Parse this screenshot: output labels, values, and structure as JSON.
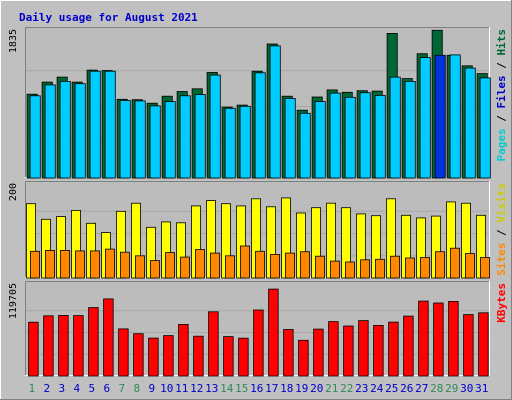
{
  "chart_data": {
    "type": "bar",
    "title": "Daily usage for August 2021",
    "colors": {
      "background": "#c0c0c0",
      "plot_background": "#bcbcbc",
      "title": "#0000cc",
      "hits": "#006633",
      "files": "#00ccff",
      "pages": "#00cccc",
      "visits": "#ffff00",
      "sites": "#ff8800",
      "kbytes": "#ff0000",
      "weekend_label": "#2e8b57",
      "weekday_label": "#0000cc"
    },
    "categories": [
      "1",
      "2",
      "3",
      "4",
      "5",
      "6",
      "7",
      "8",
      "9",
      "10",
      "11",
      "12",
      "13",
      "14",
      "15",
      "16",
      "17",
      "18",
      "19",
      "20",
      "21",
      "22",
      "23",
      "24",
      "25",
      "26",
      "27",
      "28",
      "29",
      "30",
      "31"
    ],
    "weekend_days": [
      "1",
      "7",
      "8",
      "14",
      "15",
      "21",
      "22",
      "28",
      "29"
    ],
    "highlight_day": "28",
    "panels": [
      {
        "id": "hits-files-pages",
        "ytick_label": "1835",
        "ylim": [
          0,
          1835
        ],
        "ylabel_parts": [
          {
            "text": "Pages",
            "color": "#00cccc"
          },
          {
            "text": " / ",
            "color": "#000000"
          },
          {
            "text": "Files",
            "color": "#0000cc"
          },
          {
            "text": " / ",
            "color": "#000000"
          },
          {
            "text": "Hits",
            "color": "#006633"
          }
        ],
        "series": [
          {
            "name": "Hits",
            "color": "#006633",
            "values": [
              1075,
              1230,
              1295,
              1230,
              1385,
              1380,
              1010,
              1005,
              960,
              1050,
              1110,
              1145,
              1355,
              910,
              935,
              1370,
              1720,
              1050,
              870,
              1040,
              1130,
              1100,
              1120,
              1115,
              1855,
              1275,
              1595,
              1895,
              1575,
              1440,
              1340
            ]
          },
          {
            "name": "Files",
            "color": "#00ccff",
            "values": [
              1055,
              1195,
              1240,
              1210,
              1370,
              1370,
              995,
              990,
              925,
              980,
              1055,
              1070,
              1320,
              895,
              920,
              1350,
              1695,
              1020,
              830,
              980,
              1090,
              1035,
              1095,
              1060,
              1295,
              1240,
              1545,
              1575,
              1580,
              1410,
              1285
            ]
          }
        ]
      },
      {
        "id": "visits-sites",
        "ytick_label": "200",
        "ylim": [
          0,
          200
        ],
        "ylabel_parts": [
          {
            "text": "Sites",
            "color": "#ff8800"
          },
          {
            "text": " / ",
            "color": "#000000"
          },
          {
            "text": "Visits",
            "color": "#cccc00"
          }
        ],
        "series": [
          {
            "name": "Visits",
            "color": "#ffff00",
            "values": [
              167,
              132,
              138,
              152,
              123,
              102,
              150,
              168,
              114,
              126,
              124,
              162,
              174,
              167,
              162,
              178,
              160,
              180,
              146,
              158,
              168,
              158,
              144,
              140,
              178,
              141,
              135,
              139,
              171,
              168,
              141
            ]
          },
          {
            "name": "Sites",
            "color": "#ff8800",
            "values": [
              60,
              62,
              62,
              61,
              61,
              65,
              58,
              50,
              39,
              57,
              47,
              64,
              56,
              50,
              72,
              60,
              53,
              56,
              59,
              49,
              38,
              36,
              41,
              42,
              49,
              45,
              46,
              59,
              67,
              55,
              46
            ]
          }
        ]
      },
      {
        "id": "kbytes",
        "ytick_label": "119705",
        "ylim": [
          0,
          119705
        ],
        "ylabel_parts": [
          {
            "text": "KBytes",
            "color": "#ff0000"
          }
        ],
        "series": [
          {
            "name": "KBytes",
            "color": "#ff0000",
            "values": [
              74040,
              82860,
              83370,
              83160,
              94060,
              106030,
              64770,
              58240,
              52110,
              55580,
              70990,
              54730,
              88360,
              54160,
              52000,
              90810,
              119500,
              63980,
              49110,
              64490,
              74870,
              68850,
              76240,
              69670,
              74170,
              82390,
              103030,
              100480,
              102640,
              84480,
              87010
            ]
          }
        ]
      }
    ]
  }
}
